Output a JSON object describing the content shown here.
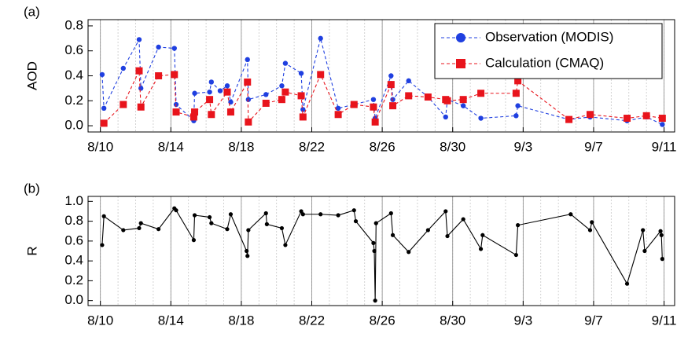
{
  "chart_data": [
    {
      "type": "line",
      "label": "(a)",
      "ylabel": "AOD",
      "xlim": [
        9.3,
        42.6
      ],
      "ylim": [
        -0.05,
        0.85
      ],
      "xticks": [
        {
          "value": 10,
          "label": "8/10"
        },
        {
          "value": 14,
          "label": "8/14"
        },
        {
          "value": 18,
          "label": "8/18"
        },
        {
          "value": 22,
          "label": "8/22"
        },
        {
          "value": 26,
          "label": "8/26"
        },
        {
          "value": 30,
          "label": "8/30"
        },
        {
          "value": 34,
          "label": "9/3"
        },
        {
          "value": 38,
          "label": "9/7"
        },
        {
          "value": 42,
          "label": "9/11"
        }
      ],
      "yticks": [
        {
          "value": 0,
          "label": "0.0"
        },
        0.2,
        0.4,
        0.6,
        0.8
      ],
      "grid": true,
      "legend": "upper right",
      "series": [
        {
          "name": "Observation (MODIS)",
          "color": "#1f3fe0",
          "marker": "circle",
          "linestyle": "dashed",
          "x": [
            10.1,
            10.2,
            11.3,
            12.2,
            12.3,
            13.3,
            14.2,
            14.3,
            15.3,
            15.35,
            16.2,
            16.3,
            16.8,
            17.2,
            17.4,
            18.35,
            18.4,
            19.4,
            20.3,
            20.5,
            21.4,
            21.5,
            22.5,
            23.5,
            24.4,
            25.5,
            25.6,
            26.5,
            26.6,
            27.5,
            28.6,
            29.6,
            29.7,
            30.6,
            31.6,
            33.6,
            33.7,
            36.6,
            37.8,
            39.9,
            41.0,
            41.9
          ],
          "values": [
            0.41,
            0.14,
            0.46,
            0.69,
            0.3,
            0.63,
            0.62,
            0.17,
            0.04,
            0.26,
            0.27,
            0.35,
            0.28,
            0.32,
            0.19,
            0.53,
            0.21,
            0.25,
            0.32,
            0.5,
            0.42,
            0.13,
            0.7,
            0.14,
            0.17,
            0.21,
            0.06,
            0.4,
            0.21,
            0.36,
            0.23,
            0.07,
            0.21,
            0.16,
            0.06,
            0.08,
            0.16,
            0.05,
            0.07,
            0.04,
            0.07,
            0.01
          ]
        },
        {
          "name": "Calculation (CMAQ)",
          "color": "#e8141c",
          "marker": "square",
          "linestyle": "dashed",
          "x": [
            10.2,
            11.3,
            12.2,
            12.3,
            13.3,
            14.2,
            14.3,
            15.3,
            15.35,
            16.2,
            16.3,
            17.2,
            17.4,
            18.35,
            18.4,
            19.4,
            20.3,
            20.5,
            21.4,
            21.5,
            22.5,
            23.5,
            24.4,
            25.5,
            25.6,
            26.5,
            26.6,
            27.5,
            28.6,
            29.6,
            29.7,
            30.6,
            31.6,
            33.6,
            33.7,
            36.6,
            37.8,
            39.9,
            41.0,
            41.9
          ],
          "values": [
            0.02,
            0.17,
            0.44,
            0.15,
            0.4,
            0.41,
            0.11,
            0.07,
            0.11,
            0.21,
            0.09,
            0.27,
            0.11,
            0.35,
            0.03,
            0.18,
            0.21,
            0.27,
            0.24,
            0.07,
            0.41,
            0.09,
            0.17,
            0.15,
            0.03,
            0.33,
            0.16,
            0.24,
            0.23,
            0.21,
            0.2,
            0.21,
            0.26,
            0.26,
            0.36,
            0.05,
            0.09,
            0.06,
            0.08,
            0.06
          ]
        }
      ]
    },
    {
      "type": "line",
      "label": "(b)",
      "ylabel": "R",
      "xlim": [
        9.3,
        42.6
      ],
      "ylim": [
        -0.05,
        1.05
      ],
      "xticks": [
        {
          "value": 10,
          "label": "8/10"
        },
        {
          "value": 14,
          "label": "8/14"
        },
        {
          "value": 18,
          "label": "8/18"
        },
        {
          "value": 22,
          "label": "8/22"
        },
        {
          "value": 26,
          "label": "8/26"
        },
        {
          "value": 30,
          "label": "8/30"
        },
        {
          "value": 34,
          "label": "9/3"
        },
        {
          "value": 38,
          "label": "9/7"
        },
        {
          "value": 42,
          "label": "9/11"
        }
      ],
      "yticks": [
        {
          "value": 0,
          "label": "0.0"
        },
        0.2,
        0.4,
        0.6,
        0.8,
        {
          "value": 1,
          "label": "1.0"
        }
      ],
      "grid": true,
      "series": [
        {
          "color": "#000000",
          "marker": "circle",
          "linestyle": "solid",
          "x": [
            10.1,
            10.2,
            11.3,
            12.2,
            12.3,
            13.3,
            14.2,
            14.3,
            15.3,
            15.35,
            16.2,
            16.3,
            17.2,
            17.4,
            18.3,
            18.35,
            18.4,
            19.4,
            19.45,
            20.3,
            20.5,
            21.4,
            21.5,
            22.5,
            23.5,
            24.4,
            24.5,
            25.5,
            25.55,
            25.6,
            25.65,
            26.5,
            26.6,
            27.5,
            28.6,
            29.6,
            29.7,
            30.6,
            31.6,
            31.7,
            33.6,
            33.7,
            36.7,
            37.8,
            37.9,
            39.9,
            40.8,
            40.9,
            41.8,
            41.85,
            41.9
          ],
          "values": [
            0.56,
            0.85,
            0.71,
            0.73,
            0.78,
            0.72,
            0.93,
            0.91,
            0.61,
            0.86,
            0.84,
            0.78,
            0.72,
            0.87,
            0.5,
            0.45,
            0.71,
            0.88,
            0.77,
            0.73,
            0.56,
            0.9,
            0.87,
            0.87,
            0.86,
            0.91,
            0.8,
            0.58,
            0.5,
            0.0,
            0.78,
            0.88,
            0.66,
            0.49,
            0.71,
            0.9,
            0.65,
            0.82,
            0.52,
            0.66,
            0.46,
            0.76,
            0.87,
            0.71,
            0.79,
            0.17,
            0.71,
            0.5,
            0.7,
            0.66,
            0.42
          ]
        }
      ]
    }
  ]
}
